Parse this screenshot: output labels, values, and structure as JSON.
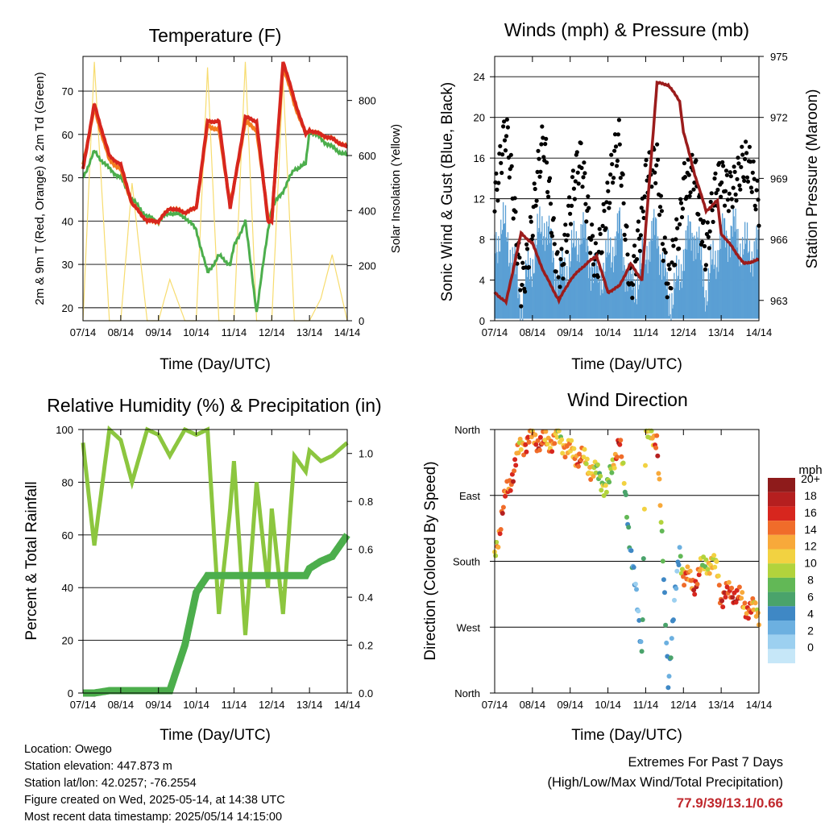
{
  "colors": {
    "temp_2m": "#d7261e",
    "temp_9m": "#f47d20",
    "dewpoint": "#4cae4c",
    "solar": "#f7dc6f",
    "wind": "#5a9fd4",
    "gust": "#000000",
    "pressure": "#9b1c1c",
    "rh": "#8cc63f",
    "precip": "#4cae4c",
    "grid": "#000000",
    "speed_scale": [
      "#c6e7f8",
      "#9cd0f0",
      "#6cb0e0",
      "#3f88c5",
      "#4aa36b",
      "#62b856",
      "#b2d33c",
      "#f2d241",
      "#f8a93a",
      "#f06c2a",
      "#d7261e",
      "#b51f1f",
      "#8e1b1b"
    ]
  },
  "footer": {
    "location": "Location: Owego",
    "elevation": "Station elevation: 447.873 m",
    "latlon": "Station lat/lon: 42.0257; -76.2554",
    "created": "Figure created on Wed, 2025-05-14, at 14:38 UTC",
    "recent": "Most recent data timestamp: 2025/05/14 14:15:00",
    "extremes_title": "Extremes For Past 7 Days",
    "extremes_sub": "(High/Low/Max Wind/Total Precipitation)",
    "extremes_values": "77.9/39/13.1/0.66"
  },
  "chart_data": [
    {
      "type": "line",
      "title": "Temperature (F)",
      "xlabel": "Time (Day/UTC)",
      "ylabel": "2m & 9m T (Red, Orange) & 2m Td (Green)",
      "ylabel_right": "Solar Insolation (Yellow)",
      "x_ticks": [
        "07/14",
        "08/14",
        "09/14",
        "10/14",
        "11/14",
        "12/14",
        "13/14",
        "14/14"
      ],
      "ylim": [
        17,
        78
      ],
      "y_ticks": [
        20,
        30,
        40,
        50,
        60,
        70
      ],
      "y2lim": [
        0,
        960
      ],
      "y2_ticks": [
        0,
        200,
        400,
        600,
        800
      ],
      "grid": true,
      "x": [
        0,
        0.3,
        0.7,
        1.0,
        1.3,
        1.7,
        2.0,
        2.3,
        2.7,
        3.0,
        3.3,
        3.6,
        3.9,
        4.0,
        4.3,
        4.6,
        4.9,
        5.0,
        5.3,
        5.6,
        5.9,
        6.0,
        6.3,
        6.6,
        7.0
      ],
      "series": [
        {
          "name": "2m T",
          "values": [
            52,
            67,
            55,
            53,
            44,
            40,
            40,
            43,
            42,
            43,
            63,
            63,
            43,
            48,
            64,
            63,
            40,
            40,
            77,
            68,
            60,
            61,
            60,
            59,
            57
          ]
        },
        {
          "name": "9m T",
          "values": [
            53,
            66,
            54,
            52,
            44,
            40,
            40,
            43,
            42,
            43,
            62,
            61,
            44,
            48,
            63,
            61,
            41,
            40,
            76,
            67,
            60,
            61,
            60,
            59,
            57
          ]
        },
        {
          "name": "2m Td",
          "values": [
            50,
            56,
            52,
            50,
            45,
            41,
            40,
            42,
            41,
            38,
            28,
            32,
            30,
            34,
            40,
            19,
            38,
            43,
            47,
            52,
            53,
            61,
            59,
            57,
            55
          ]
        },
        {
          "name": "Solar",
          "values": [
            0,
            940,
            0,
            0,
            500,
            0,
            0,
            150,
            0,
            0,
            920,
            0,
            0,
            0,
            940,
            0,
            0,
            0,
            880,
            0,
            0,
            0,
            80,
            240,
            0
          ]
        }
      ]
    },
    {
      "type": "scatter",
      "title": "Winds (mph) & Pressure (mb)",
      "xlabel": "Time (Day/UTC)",
      "ylabel": "Sonic Wind & Gust (Blue, Black)",
      "ylabel_right": "Station Pressure (Maroon)",
      "x_ticks": [
        "07/14",
        "08/14",
        "09/14",
        "10/14",
        "11/14",
        "12/14",
        "13/14",
        "14/14"
      ],
      "ylim": [
        0,
        26
      ],
      "y_ticks": [
        0,
        4,
        8,
        12,
        16,
        20,
        24
      ],
      "y2lim": [
        962,
        975
      ],
      "y2_ticks": [
        963,
        966,
        969,
        972,
        975
      ],
      "grid": true,
      "x": [
        0,
        0.3,
        0.7,
        1.0,
        1.3,
        1.7,
        2.0,
        2.3,
        2.7,
        3.0,
        3.3,
        3.6,
        3.9,
        4.0,
        4.3,
        4.6,
        4.9,
        5.0,
        5.3,
        5.6,
        5.9,
        6.0,
        6.3,
        6.6,
        7.0
      ],
      "series": [
        {
          "name": "Wind",
          "values": [
            8,
            9,
            2,
            6,
            10,
            4,
            6,
            9,
            4,
            6,
            9,
            3,
            5,
            7,
            9,
            2,
            4,
            7,
            9,
            3,
            7,
            8,
            9,
            7,
            7
          ]
        },
        {
          "name": "Gust",
          "values": [
            13,
            17,
            5,
            10,
            16,
            6,
            10,
            15,
            7,
            10,
            18,
            5,
            8,
            12,
            17,
            4,
            7,
            12,
            17,
            6,
            12,
            14,
            15,
            14,
            12
          ]
        },
        {
          "name": "Pressure",
          "values": [
            963.4,
            962.9,
            966.3,
            965.8,
            964.4,
            963.0,
            964.0,
            964.6,
            965.2,
            963.4,
            963.7,
            964.8,
            964.0,
            966.5,
            973.7,
            973.6,
            972.8,
            971.3,
            969.2,
            967.4,
            967.9,
            966.3,
            965.6,
            964.8,
            965.0
          ]
        }
      ]
    },
    {
      "type": "line",
      "title": "Relative Humidity (%) & Precipitation (in)",
      "xlabel": "Time (Day/UTC)",
      "ylabel": "Percent & Total Rainfall",
      "x_ticks": [
        "07/14",
        "08/14",
        "09/14",
        "10/14",
        "11/14",
        "12/14",
        "13/14",
        "14/14"
      ],
      "ylim": [
        0,
        100
      ],
      "y_ticks": [
        0,
        20,
        40,
        60,
        80,
        100
      ],
      "y2lim": [
        0,
        1.1
      ],
      "y2_ticks": [
        "0.0",
        "0.2",
        "0.4",
        "0.6",
        "0.8",
        "1.0"
      ],
      "grid": true,
      "x": [
        0,
        0.3,
        0.7,
        1.0,
        1.3,
        1.7,
        2.0,
        2.3,
        2.7,
        3.0,
        3.3,
        3.6,
        3.9,
        4.0,
        4.3,
        4.6,
        4.9,
        5.0,
        5.3,
        5.6,
        5.9,
        6.0,
        6.3,
        6.6,
        7.0
      ],
      "series": [
        {
          "name": "RH",
          "values": [
            95,
            56,
            100,
            96,
            80,
            100,
            98,
            90,
            100,
            98,
            100,
            30,
            70,
            88,
            22,
            80,
            40,
            70,
            30,
            90,
            84,
            92,
            88,
            90,
            95
          ]
        },
        {
          "name": "Precip",
          "values": [
            0,
            0,
            0.01,
            0.01,
            0.01,
            0.01,
            0.01,
            0.01,
            0.2,
            0.42,
            0.49,
            0.49,
            0.49,
            0.49,
            0.49,
            0.49,
            0.49,
            0.49,
            0.49,
            0.49,
            0.49,
            0.52,
            0.55,
            0.57,
            0.66
          ]
        }
      ]
    },
    {
      "type": "scatter",
      "title": "Wind Direction",
      "xlabel": "Time (Day/UTC)",
      "ylabel": "Direction (Colored By Speed)",
      "x_ticks": [
        "07/14",
        "08/14",
        "09/14",
        "10/14",
        "11/14",
        "12/14",
        "13/14",
        "14/14"
      ],
      "y_ticks": [
        "North",
        "East",
        "South",
        "West",
        "North"
      ],
      "ylim": [
        0,
        360
      ],
      "grid": true,
      "legend": {
        "title": "mph",
        "labels": [
          "0",
          "2",
          "4",
          "6",
          "8",
          "10",
          "12",
          "14",
          "16",
          "18",
          "20+"
        ],
        "placement": "right"
      },
      "x": [
        0,
        0.3,
        0.7,
        1.0,
        1.3,
        1.7,
        2.0,
        2.3,
        2.7,
        3.0,
        3.3,
        3.6,
        3.9,
        4.0,
        4.3,
        4.6,
        4.9,
        5.0,
        5.3,
        5.6,
        5.9,
        6.0,
        6.3,
        6.6,
        7.0
      ],
      "series": [
        {
          "name": "direction",
          "values": [
            190,
            270,
            340,
            350,
            340,
            350,
            330,
            320,
            300,
            280,
            350,
            200,
            60,
            350,
            350,
            20,
            200,
            160,
            150,
            180,
            170,
            130,
            140,
            120,
            110
          ]
        },
        {
          "name": "speed",
          "values": [
            7,
            10,
            8,
            9,
            9,
            7,
            8,
            9,
            6,
            5,
            10,
            2,
            3,
            6,
            9,
            2,
            3,
            8,
            10,
            6,
            8,
            9,
            10,
            9,
            8
          ]
        }
      ]
    }
  ]
}
